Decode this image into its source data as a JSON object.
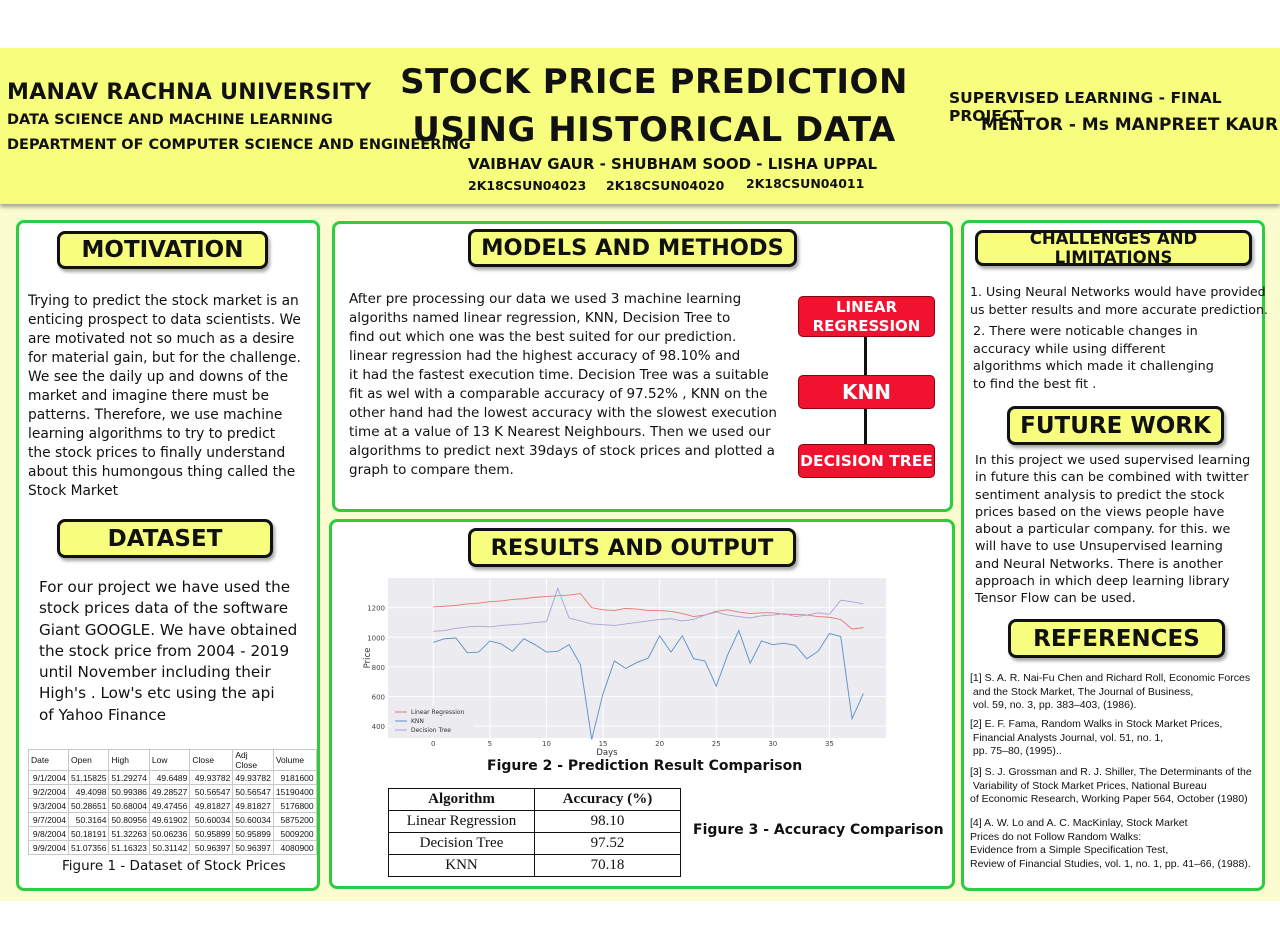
{
  "header": {
    "university": "MANAV RACHNA UNIVERSITY",
    "program": "DATA SCIENCE AND MACHINE LEARNING",
    "department": "DEPARTMENT OF COMPUTER SCIENCE AND ENGINEERING",
    "title_line1": "STOCK PRICE PREDICTION",
    "title_line2": "USING HISTORICAL DATA",
    "authors": "VAIBHAV GAUR - SHUBHAM SOOD - LISHA UPPAL",
    "roll_numbers": [
      "2K18CSUN04023",
      "2K18CSUN04020",
      "2K18CSUN04011"
    ],
    "course": "SUPERVISED LEARNING - FINAL PROJECT",
    "mentor": "MENTOR - Ms MANPREET KAUR"
  },
  "motivation": {
    "heading": "MOTIVATION",
    "lines": [
      "Trying to predict the stock market is an",
      "enticing prospect to data scientists. We",
      "are motivated not so much as a desire",
      "for material gain, but for the challenge.",
      "We see the daily up and downs of the",
      "market and imagine there must be",
      "patterns. Therefore, we use machine",
      "learning algorithms to try to predict",
      "the stock prices to finally understand",
      "about this humongous thing called the",
      "Stock Market"
    ]
  },
  "dataset": {
    "heading": "DATASET",
    "lines": [
      "For our project we have used the",
      "stock prices data of the software",
      "Giant GOOGLE. We have obtained",
      "the stock price from 2004 - 2019",
      "until November including their",
      "High's . Low's etc using the api",
      "of Yahoo Finance"
    ],
    "table": {
      "columns": [
        "Date",
        "Open",
        "High",
        "Low",
        "Close",
        "Adj Close",
        "Volume"
      ],
      "rows": [
        [
          "9/1/2004",
          "51.15825",
          "51.29274",
          "49.6489",
          "49.93782",
          "49.93782",
          "9181600"
        ],
        [
          "9/2/2004",
          "49.4098",
          "50.99386",
          "49.28527",
          "50.56547",
          "50.56547",
          "15190400"
        ],
        [
          "9/3/2004",
          "50.28651",
          "50.68004",
          "49.47456",
          "49.81827",
          "49.81827",
          "5176800"
        ],
        [
          "9/7/2004",
          "50.3164",
          "50.80956",
          "49.61902",
          "50.60034",
          "50.60034",
          "5875200"
        ],
        [
          "9/8/2004",
          "50.18191",
          "51.32263",
          "50.06236",
          "50.95899",
          "50.95899",
          "5009200"
        ],
        [
          "9/9/2004",
          "51.07356",
          "51.16323",
          "50.31142",
          "50.96397",
          "50.96397",
          "4080900"
        ]
      ]
    },
    "caption": "Figure 1 - Dataset of Stock Prices"
  },
  "models": {
    "heading": "MODELS AND METHODS",
    "lines": [
      "After pre processing our data we used 3 machine learning",
      "algoriths named linear regression, KNN, Decision Tree to",
      "find out which one was the best suited for our prediction.",
      "linear regression had the highest accuracy of 98.10% and",
      "it had the fastest execution time. Decision Tree was a suitable",
      "fit as wel with a comparable accuracy of 97.52% , KNN on the",
      "other hand had the lowest accuracy with the slowest execution",
      "time at a value of 13 K Nearest Neighbours. Then we used our",
      "algorithms to predict next 39days of stock prices and plotted a",
      "graph to compare them."
    ],
    "flow": [
      "LINEAR\nREGRESSION",
      "KNN",
      "DECISION TREE"
    ]
  },
  "results": {
    "heading": "RESULTS AND OUTPUT",
    "figure2_caption": "Figure 2 - Prediction Result Comparison",
    "figure3_caption": "Figure 3 - Accuracy Comparison",
    "accuracy_table": {
      "columns": [
        "Algorithm",
        "Accuracy (%)"
      ],
      "rows": [
        [
          "Linear Regression",
          "98.10"
        ],
        [
          "Decision Tree",
          "97.52"
        ],
        [
          "KNN",
          "70.18"
        ]
      ]
    }
  },
  "chart_data": {
    "type": "line",
    "xlabel": "Days",
    "ylabel": "Price",
    "xlim": [
      -4,
      40
    ],
    "ylim": [
      320,
      1400
    ],
    "x_ticks": [
      0,
      5,
      10,
      15,
      20,
      25,
      30,
      35
    ],
    "y_ticks": [
      400,
      600,
      800,
      1000,
      1200
    ],
    "legend_position": "bottom-left",
    "grid": true,
    "series": [
      {
        "name": "Linear Regression",
        "color": "#e8776f",
        "values": [
          1205,
          1210,
          1215,
          1225,
          1230,
          1240,
          1245,
          1255,
          1260,
          1270,
          1275,
          1280,
          1285,
          1295,
          1200,
          1185,
          1180,
          1195,
          1190,
          1180,
          1180,
          1175,
          1160,
          1140,
          1150,
          1175,
          1185,
          1170,
          1160,
          1165,
          1165,
          1155,
          1155,
          1150,
          1140,
          1135,
          1120,
          1055,
          1065
        ]
      },
      {
        "name": "KNN",
        "color": "#5a8fc8",
        "values": [
          965,
          990,
          995,
          895,
          900,
          975,
          955,
          905,
          990,
          950,
          900,
          905,
          950,
          815,
          310,
          620,
          840,
          790,
          830,
          860,
          1010,
          900,
          1010,
          855,
          840,
          670,
          880,
          1045,
          825,
          975,
          950,
          960,
          945,
          855,
          905,
          1025,
          1005,
          450,
          620
        ]
      },
      {
        "name": "Decision Tree",
        "color": "#a7a4d8",
        "values": [
          1040,
          1045,
          1060,
          1070,
          1075,
          1070,
          1080,
          1085,
          1090,
          1100,
          1105,
          1330,
          1130,
          1110,
          1090,
          1085,
          1080,
          1090,
          1100,
          1110,
          1120,
          1125,
          1110,
          1120,
          1150,
          1170,
          1150,
          1140,
          1130,
          1145,
          1150,
          1160,
          1140,
          1150,
          1165,
          1155,
          1250,
          1240,
          1225
        ]
      }
    ]
  },
  "challenges": {
    "heading": "CHALLENGES AND LIMITATIONS",
    "p1_lines": [
      "1. Using Neural Networks would have provided",
      "us better results and more accurate prediction."
    ],
    "p2_lines": [
      "2. There were noticable changes in",
      "accuracy while using different",
      "algorithms which made it challenging",
      "to find the best fit ."
    ]
  },
  "future": {
    "heading": "FUTURE WORK",
    "lines": [
      "In this project we used supervised learning",
      "in future this can be combined with twitter",
      "sentiment analysis to predict the stock",
      "prices based on the views people have",
      "about a particular company. for this. we",
      "will have to use Unsupervised learning",
      "and Neural Networks. There is another",
      "approach in which deep learning library",
      "Tensor Flow can be used."
    ]
  },
  "references": {
    "heading": "REFERENCES",
    "items": [
      [
        "[1] S. A. R. Nai-Fu Chen and Richard Roll, Economic Forces",
        " and the Stock Market, The Journal of Business,",
        " vol. 59, no. 3, pp. 383–403, (1986)."
      ],
      [
        "[2] E. F. Fama, Random Walks in Stock Market Prices,",
        " Financial Analysts Journal, vol. 51, no. 1,",
        " pp. 75–80, (1995).."
      ],
      [
        "[3] S. J. Grossman and R. J. Shiller, The Determinants of the",
        " Variability of Stock Market Prices, National Bureau",
        "of Economic Research, Working Paper 564, October (1980)"
      ],
      [
        "[4] A. W. Lo and A. C. MacKinlay, Stock Market",
        "Prices do not Follow Random Walks:",
        "Evidence from a Simple Specification Test,",
        "Review of Financial Studies, vol. 1, no. 1, pp. 41–66, (1988)."
      ]
    ]
  }
}
